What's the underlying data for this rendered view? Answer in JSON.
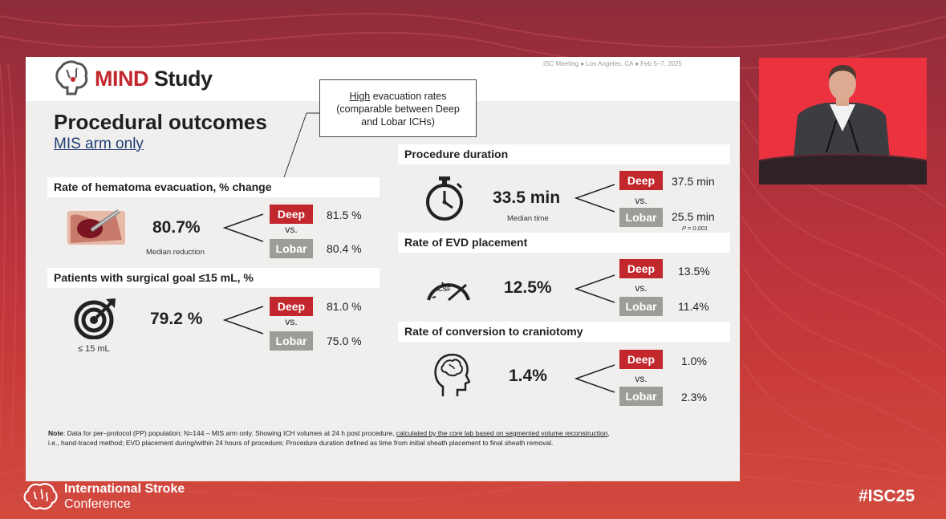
{
  "slide": {
    "logo_mind": "MIND",
    "logo_study": " Study",
    "meeting": "ISC Meeting ● Los Angeles, CA ● Feb 5–7, 2025",
    "callout": {
      "high": "High",
      "rest1": " evacuation rates",
      "line2": "(comparable between Deep",
      "line3": "and Lobar ICHs)"
    },
    "title": "Procedural outcomes",
    "subtitle": "MIS arm only",
    "deep_label": "Deep",
    "lobar_label": "Lobar",
    "vs_label": "vs.",
    "sections": {
      "evacuation": {
        "header": "Rate of hematoma evacuation, % change",
        "value": "80.7%",
        "caption": "Median reduction",
        "deep": "81.5 %",
        "lobar": "80.4 %",
        "icon": "hematoma-evacuation-icon"
      },
      "surgical_goal": {
        "header": "Patients with surgical goal ≤15 mL, %",
        "value": "79.2 %",
        "caption": "≤ 15 mL",
        "deep": "81.0 %",
        "lobar": "75.0 %",
        "icon": "target-icon"
      },
      "duration": {
        "header": "Procedure duration",
        "value": "33.5 min",
        "caption": "Median time",
        "deep": "37.5 min",
        "lobar": "25.5 min",
        "pvalue": "P = 0.001",
        "icon": "stopwatch-icon"
      },
      "evd": {
        "header": "Rate of EVD placement",
        "value": "12.5%",
        "gauge_label": "CSF",
        "deep": "13.5%",
        "lobar": "11.4%",
        "icon": "gauge-icon"
      },
      "craniotomy": {
        "header": "Rate of conversion to craniotomy",
        "value": "1.4%",
        "deep": "1.0%",
        "lobar": "2.3%",
        "icon": "brain-head-icon"
      }
    },
    "note": {
      "bold": "Note",
      "part1": ": Data for per–protocol (PP) population; N=144 – MIS arm only.  Showing ICH volumes at 24 h post procedure, ",
      "underlined": "calculated by the core lab based on segmented volume reconstruction",
      "part2": ",",
      "line2": "i.e., hand-traced method; EVD placement during/within 24 hours of procedure; Procedure duration defined as time from initial sheath placement to final sheath removal."
    }
  },
  "conference": {
    "line1": "International Stroke",
    "line2": "Conference",
    "hashtag": "#ISC25"
  },
  "colors": {
    "deep": "#c1272d",
    "lobar": "#9d9d98",
    "background": "#b8323c"
  }
}
